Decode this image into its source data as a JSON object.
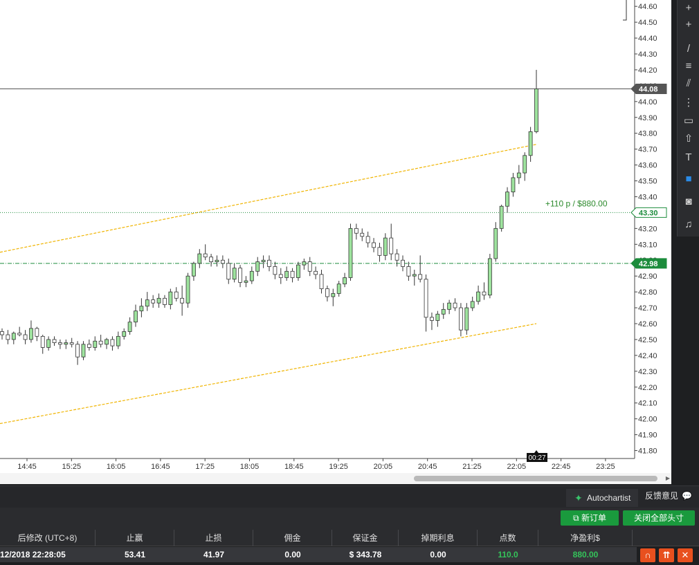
{
  "chart_data": {
    "type": "candlestick",
    "price_axis_ticks": [
      "44.60",
      "44.50",
      "44.40",
      "44.30",
      "44.20",
      "44.10",
      "44.00",
      "43.90",
      "43.80",
      "43.70",
      "43.60",
      "43.50",
      "43.40",
      "43.30",
      "43.20",
      "43.10",
      "43.00",
      "42.90",
      "42.80",
      "42.70",
      "42.60",
      "42.50",
      "42.40",
      "42.30",
      "42.20",
      "42.10",
      "42.00",
      "41.90",
      "41.80"
    ],
    "time_axis_ticks": [
      "14:45",
      "15:25",
      "16:05",
      "16:45",
      "17:25",
      "18:05",
      "18:45",
      "19:25",
      "20:05",
      "20:45",
      "21:25",
      "22:05",
      "22:45",
      "23:25"
    ],
    "ylim": [
      41.75,
      44.64
    ],
    "current_price": "44.08",
    "entry_price": "43.30",
    "level_price": "42.98",
    "countdown": "00:27",
    "profit_label": "+110 p /  $880.00",
    "candles": [
      [
        42.55,
        42.57,
        42.5,
        42.53
      ],
      [
        42.53,
        42.56,
        42.47,
        42.5
      ],
      [
        42.5,
        42.55,
        42.47,
        42.54
      ],
      [
        42.54,
        42.58,
        42.52,
        42.53
      ],
      [
        42.53,
        42.56,
        42.47,
        42.5
      ],
      [
        42.5,
        42.62,
        42.48,
        42.57
      ],
      [
        42.57,
        42.58,
        42.49,
        42.52
      ],
      [
        42.52,
        42.53,
        42.41,
        42.45
      ],
      [
        42.45,
        42.52,
        42.43,
        42.5
      ],
      [
        42.5,
        42.52,
        42.46,
        42.48
      ],
      [
        42.48,
        42.5,
        42.44,
        42.47
      ],
      [
        42.47,
        42.5,
        42.44,
        42.48
      ],
      [
        42.48,
        42.51,
        42.45,
        42.47
      ],
      [
        42.47,
        42.49,
        42.34,
        42.39
      ],
      [
        42.39,
        42.49,
        42.37,
        42.47
      ],
      [
        42.47,
        42.5,
        42.43,
        42.45
      ],
      [
        42.45,
        42.52,
        42.43,
        42.49
      ],
      [
        42.49,
        42.53,
        42.45,
        42.47
      ],
      [
        42.47,
        42.51,
        42.44,
        42.5
      ],
      [
        42.5,
        42.52,
        42.43,
        42.46
      ],
      [
        42.46,
        42.55,
        42.44,
        42.52
      ],
      [
        42.52,
        42.57,
        42.5,
        42.55
      ],
      [
        42.55,
        42.64,
        42.53,
        42.61
      ],
      [
        42.61,
        42.72,
        42.58,
        42.68
      ],
      [
        42.68,
        42.76,
        42.64,
        42.71
      ],
      [
        42.71,
        42.8,
        42.68,
        42.75
      ],
      [
        42.75,
        42.78,
        42.7,
        42.73
      ],
      [
        42.73,
        42.79,
        42.7,
        42.76
      ],
      [
        42.76,
        42.78,
        42.7,
        42.72
      ],
      [
        42.72,
        42.82,
        42.69,
        42.8
      ],
      [
        42.8,
        42.83,
        42.74,
        42.76
      ],
      [
        42.76,
        42.84,
        42.65,
        42.73
      ],
      [
        42.73,
        42.92,
        42.7,
        42.9
      ],
      [
        42.9,
        42.99,
        42.87,
        42.98
      ],
      [
        42.98,
        43.07,
        42.95,
        43.04
      ],
      [
        43.04,
        43.1,
        43.0,
        43.02
      ],
      [
        43.02,
        43.04,
        42.96,
        42.99
      ],
      [
        42.99,
        43.03,
        42.96,
        43.0
      ],
      [
        43.0,
        43.03,
        42.95,
        42.98
      ],
      [
        42.98,
        43.01,
        42.85,
        42.88
      ],
      [
        42.88,
        42.98,
        42.86,
        42.95
      ],
      [
        42.95,
        42.97,
        42.83,
        42.86
      ],
      [
        42.86,
        42.9,
        42.83,
        42.87
      ],
      [
        42.87,
        42.96,
        42.85,
        42.93
      ],
      [
        42.93,
        43.02,
        42.9,
        42.99
      ],
      [
        42.99,
        43.03,
        42.95,
        43.0
      ],
      [
        43.0,
        43.03,
        42.93,
        42.96
      ],
      [
        42.96,
        42.99,
        42.88,
        42.91
      ],
      [
        42.91,
        42.95,
        42.85,
        42.89
      ],
      [
        42.89,
        42.96,
        42.87,
        42.93
      ],
      [
        42.93,
        42.95,
        42.86,
        42.89
      ],
      [
        42.89,
        42.99,
        42.87,
        42.97
      ],
      [
        42.97,
        43.01,
        42.94,
        42.99
      ],
      [
        42.99,
        43.02,
        42.9,
        42.93
      ],
      [
        42.93,
        42.96,
        42.88,
        42.91
      ],
      [
        42.91,
        42.94,
        42.79,
        42.82
      ],
      [
        42.82,
        42.84,
        42.74,
        42.77
      ],
      [
        42.77,
        42.82,
        42.71,
        42.79
      ],
      [
        42.79,
        42.87,
        42.77,
        42.85
      ],
      [
        42.85,
        42.92,
        42.83,
        42.89
      ],
      [
        42.89,
        43.23,
        42.87,
        43.2
      ],
      [
        43.2,
        43.23,
        43.13,
        43.17
      ],
      [
        43.17,
        43.2,
        43.12,
        43.15
      ],
      [
        43.15,
        43.18,
        43.08,
        43.11
      ],
      [
        43.11,
        43.14,
        43.05,
        43.08
      ],
      [
        43.08,
        43.11,
        42.99,
        43.03
      ],
      [
        43.03,
        43.17,
        43.0,
        43.14
      ],
      [
        43.14,
        43.23,
        43.0,
        43.04
      ],
      [
        43.04,
        43.07,
        42.96,
        43.0
      ],
      [
        43.0,
        43.03,
        42.93,
        42.96
      ],
      [
        42.96,
        42.99,
        42.87,
        42.9
      ],
      [
        42.9,
        42.94,
        42.84,
        42.91
      ],
      [
        42.91,
        43.03,
        42.86,
        42.88
      ],
      [
        42.88,
        42.91,
        42.55,
        42.64
      ],
      [
        42.64,
        42.67,
        42.56,
        42.62
      ],
      [
        42.62,
        42.68,
        42.58,
        42.66
      ],
      [
        42.66,
        42.73,
        42.63,
        42.69
      ],
      [
        42.69,
        42.75,
        42.66,
        42.73
      ],
      [
        42.73,
        42.76,
        42.68,
        42.7
      ],
      [
        42.7,
        42.73,
        42.52,
        42.56
      ],
      [
        42.56,
        42.73,
        42.53,
        42.7
      ],
      [
        42.7,
        42.77,
        42.68,
        42.74
      ],
      [
        42.74,
        42.84,
        42.72,
        42.8
      ],
      [
        42.8,
        42.86,
        42.75,
        42.78
      ],
      [
        42.78,
        43.04,
        42.76,
        43.01
      ],
      [
        43.01,
        43.24,
        42.99,
        43.2
      ],
      [
        43.2,
        43.35,
        43.18,
        43.34
      ],
      [
        43.34,
        43.46,
        43.3,
        43.43
      ],
      [
        43.43,
        43.55,
        43.4,
        43.52
      ],
      [
        43.52,
        43.6,
        43.48,
        43.55
      ],
      [
        43.55,
        43.68,
        43.5,
        43.66
      ],
      [
        43.66,
        43.84,
        43.62,
        43.81
      ],
      [
        43.81,
        44.2,
        43.8,
        44.08
      ]
    ]
  },
  "tools": [
    {
      "name": "crosshair-icon",
      "glyph": "+"
    },
    {
      "name": "cursor-tool-icon",
      "glyph": "+"
    },
    {
      "name": "trend-line-icon",
      "glyph": "/"
    },
    {
      "name": "channel-tool-icon",
      "glyph": "≡"
    },
    {
      "name": "pitchfork-icon",
      "glyph": "⫽"
    },
    {
      "name": "fibonacci-icon",
      "glyph": "⋮"
    },
    {
      "name": "rectangle-icon",
      "glyph": "▭"
    },
    {
      "name": "arrow-up-icon",
      "glyph": "⇧"
    },
    {
      "name": "text-tool-icon",
      "glyph": "T"
    },
    {
      "name": "color-picker-icon",
      "glyph": "■"
    },
    {
      "name": "camera-icon",
      "glyph": "◙"
    },
    {
      "name": "alert-bell-icon",
      "glyph": "♫"
    }
  ],
  "panel": {
    "autochartist_label": "Autochartist",
    "feedback_label": "反馈意见",
    "new_order_label": "新订单",
    "close_all_label": "关闭全部头寸"
  },
  "table": {
    "headers": [
      "后修改 (UTC+8)",
      "止赢",
      "止损",
      "佣金",
      "保证金",
      "掉期利息",
      "点数",
      "净盈利$"
    ],
    "row": {
      "modified": "12/2018 22:28:05",
      "take_profit": "53.41",
      "stop_loss": "41.97",
      "commission": "0.00",
      "margin": "$ 343.78",
      "swap": "0.00",
      "points": "110.0",
      "net_profit": "880.00"
    }
  },
  "colors": {
    "bull_fill": "#9ee39e",
    "bear_fill": "#ffffff",
    "channel": "#f0b400",
    "price_line": "#555555",
    "entry_line": "#1c8c3c",
    "level_line": "#1c8c3c",
    "profit_text": "#2d8a2d"
  }
}
